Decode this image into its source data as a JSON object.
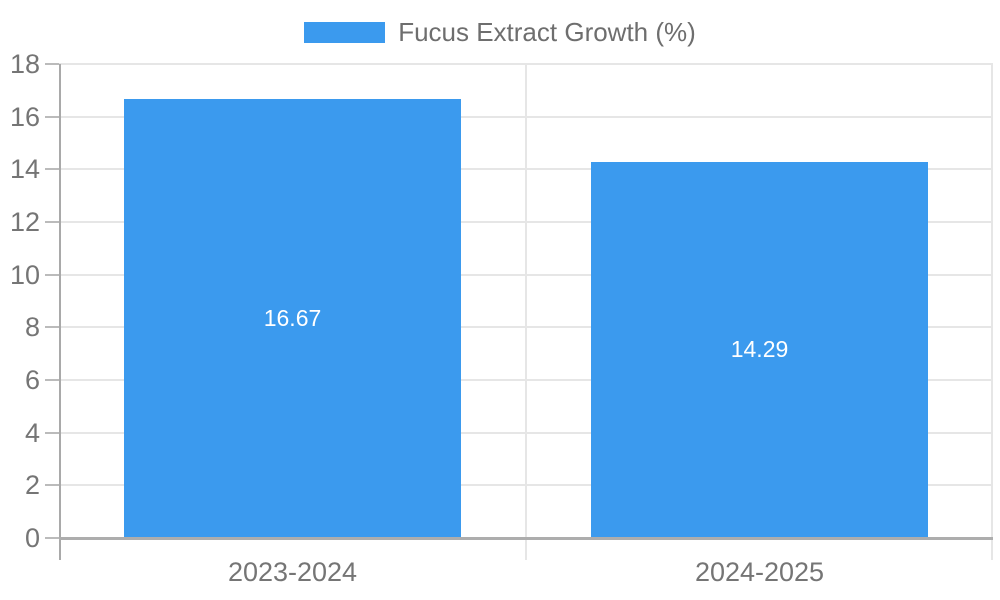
{
  "legend": {
    "label": "Fucus Extract Growth (%)",
    "position": "top"
  },
  "chart_data": {
    "type": "bar",
    "title": "",
    "xlabel": "",
    "ylabel": "",
    "categories": [
      "2023-2024",
      "2024-2025"
    ],
    "series": [
      {
        "name": "Fucus Extract Growth (%)",
        "values": [
          16.67,
          14.29
        ]
      }
    ],
    "bar_value_labels": [
      "16.67",
      "14.29"
    ],
    "ylim": [
      0,
      18
    ],
    "yticks": [
      0,
      2,
      4,
      6,
      8,
      10,
      12,
      14,
      16,
      18
    ],
    "grid": true,
    "legend_position": "top",
    "colors": {
      "bar": "#3b9aee",
      "grid_line": "#e6e6e6",
      "axis_line": "#a9a9a9",
      "baseline": "#adadad",
      "tick_mark": "#bbbbbb",
      "tick_label_text": "#757575",
      "legend_text": "#6e6e6e",
      "bar_label_text": "#ffffff",
      "background": "#ffffff"
    }
  }
}
